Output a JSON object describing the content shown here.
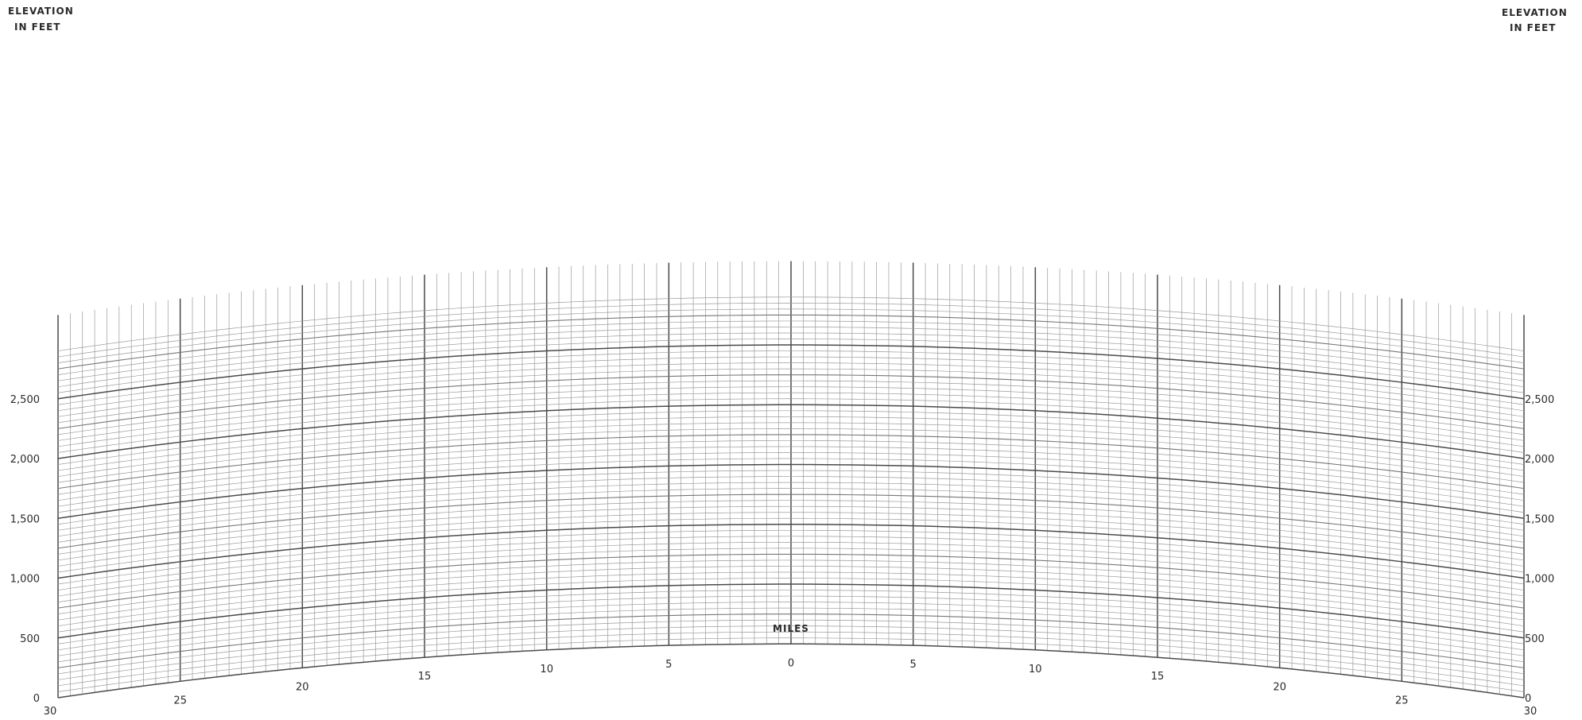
{
  "chart_data": {
    "type": "line",
    "left_axis_title": [
      "ELEVATION",
      "IN FEET"
    ],
    "right_axis_title": [
      "ELEVATION",
      "IN FEET"
    ],
    "x_axis_title": "MILES",
    "elevation_ticks": [
      "0",
      "500",
      "1,000",
      "1,500",
      "2,000",
      "2,500"
    ],
    "elevation_tick_values": [
      0,
      500,
      1000,
      1500,
      2000,
      2500
    ],
    "mile_ticks": [
      "30",
      "25",
      "20",
      "15",
      "10",
      "5",
      "0",
      "5",
      "10",
      "15",
      "20",
      "25",
      "30"
    ],
    "mile_tick_values": [
      -30,
      -25,
      -20,
      -15,
      -10,
      -5,
      0,
      5,
      10,
      15,
      20,
      25,
      30
    ],
    "xlim": [
      -30,
      30
    ],
    "ylim": [
      0,
      2500
    ],
    "earth_curvature_rise_at_center_ft": 450,
    "grid": true
  }
}
